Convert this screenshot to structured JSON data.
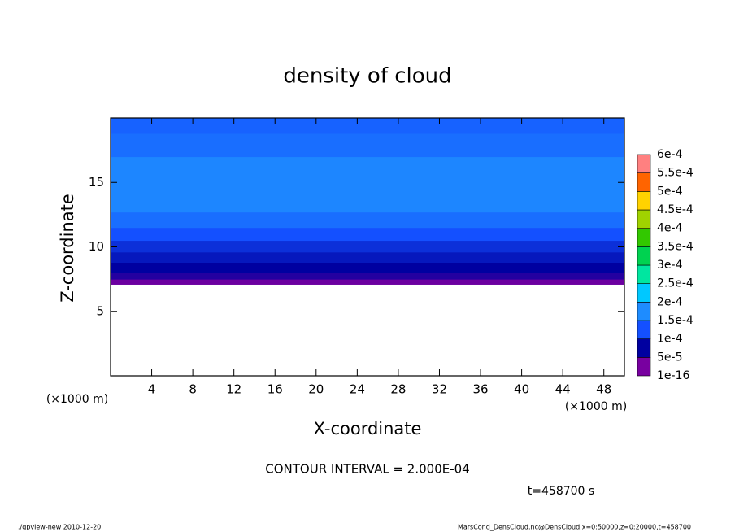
{
  "chart_data": {
    "type": "contour",
    "title": "density of cloud",
    "xlabel": "X-coordinate",
    "ylabel": "Z-coordinate",
    "x_unit": "(×1000 m)",
    "y_unit": "(×1000 m)",
    "xlim": [
      0,
      50
    ],
    "xticks": [
      4,
      8,
      12,
      16,
      20,
      24,
      28,
      32,
      36,
      40,
      44,
      48
    ],
    "ylim": [
      0,
      20
    ],
    "yticks": [
      5,
      10,
      15
    ],
    "profile": {
      "z": [
        7.1,
        7.5,
        8,
        8.8,
        9.6,
        10.5,
        11.5,
        12.7,
        17,
        18.8
      ],
      "values": [
        3e-05,
        6e-05,
        7.5e-05,
        9e-05,
        0.000105,
        0.000125,
        0.00015,
        0.00017,
        0.00015,
        0.00014
      ]
    },
    "levels": [
      {
        "value": 1e-16,
        "label": "1e-16"
      },
      {
        "value": 5e-05,
        "label": "5e-5"
      },
      {
        "value": 0.0001,
        "label": "1e-4"
      },
      {
        "value": 0.00015,
        "label": "1.5e-4"
      },
      {
        "value": 0.0002,
        "label": "2e-4"
      },
      {
        "value": 0.00025,
        "label": "2.5e-4"
      },
      {
        "value": 0.0003,
        "label": "3e-4"
      },
      {
        "value": 0.00035,
        "label": "3.5e-4"
      },
      {
        "value": 0.0004,
        "label": "4e-4"
      },
      {
        "value": 0.00045,
        "label": "4.5e-4"
      },
      {
        "value": 0.0005,
        "label": "5e-4"
      },
      {
        "value": 0.00055,
        "label": "5.5e-4"
      },
      {
        "value": 0.0006,
        "label": "6e-4"
      }
    ],
    "colors": [
      "#7800a0",
      "#0000a0",
      "#1450ff",
      "#1e8cff",
      "#00c8ff",
      "#00e6a0",
      "#00d250",
      "#32c800",
      "#a0d200",
      "#ffd200",
      "#ff6400",
      "#ff8080"
    ],
    "contour_interval": "CONTOUR INTERVAL = 2.000E-04",
    "time_label": "t=458700 s",
    "footer_left": "./gpview-new  2010-12-20",
    "footer_right": "MarsCond_DensCloud.nc@DensCloud,x=0:50000,z=0:20000,t=458700"
  }
}
